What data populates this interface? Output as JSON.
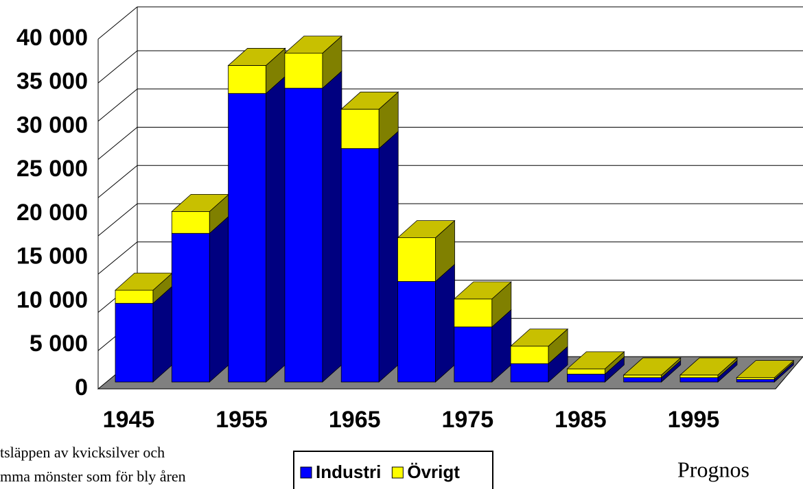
{
  "chart_data": {
    "type": "bar3d_stacked",
    "categories": [
      "1945",
      null,
      "1955",
      null,
      "1965",
      null,
      "1975",
      null,
      "1985",
      null,
      "1995",
      null
    ],
    "series": [
      {
        "name": "Industri",
        "color": "#0000ff",
        "side": "#000080",
        "values": [
          9000,
          17000,
          33000,
          33600,
          26700,
          11500,
          6300,
          2100,
          900,
          500,
          500,
          300
        ]
      },
      {
        "name": "Övrigt",
        "color": "#ffff00",
        "side": "#808000",
        "values": [
          1500,
          2500,
          3200,
          4000,
          4500,
          5000,
          3200,
          2000,
          600,
          300,
          300,
          200
        ]
      }
    ],
    "ylim": [
      0,
      40000
    ],
    "yticks": [
      {
        "value": 0,
        "label": "0"
      },
      {
        "value": 5000,
        "label": "5 000"
      },
      {
        "value": 10000,
        "label": "10 000"
      },
      {
        "value": 15000,
        "label": "15 000"
      },
      {
        "value": 20000,
        "label": "20 000"
      },
      {
        "value": 25000,
        "label": "25 000"
      },
      {
        "value": 30000,
        "label": "30 000"
      },
      {
        "value": 35000,
        "label": "35 000"
      },
      {
        "value": 40000,
        "label": "40 000"
      }
    ],
    "grid": true,
    "notes": [
      "tsläppen av kvicksilver och",
      "mma mönster som  för bly åren"
    ],
    "annotation": "Prognos"
  }
}
